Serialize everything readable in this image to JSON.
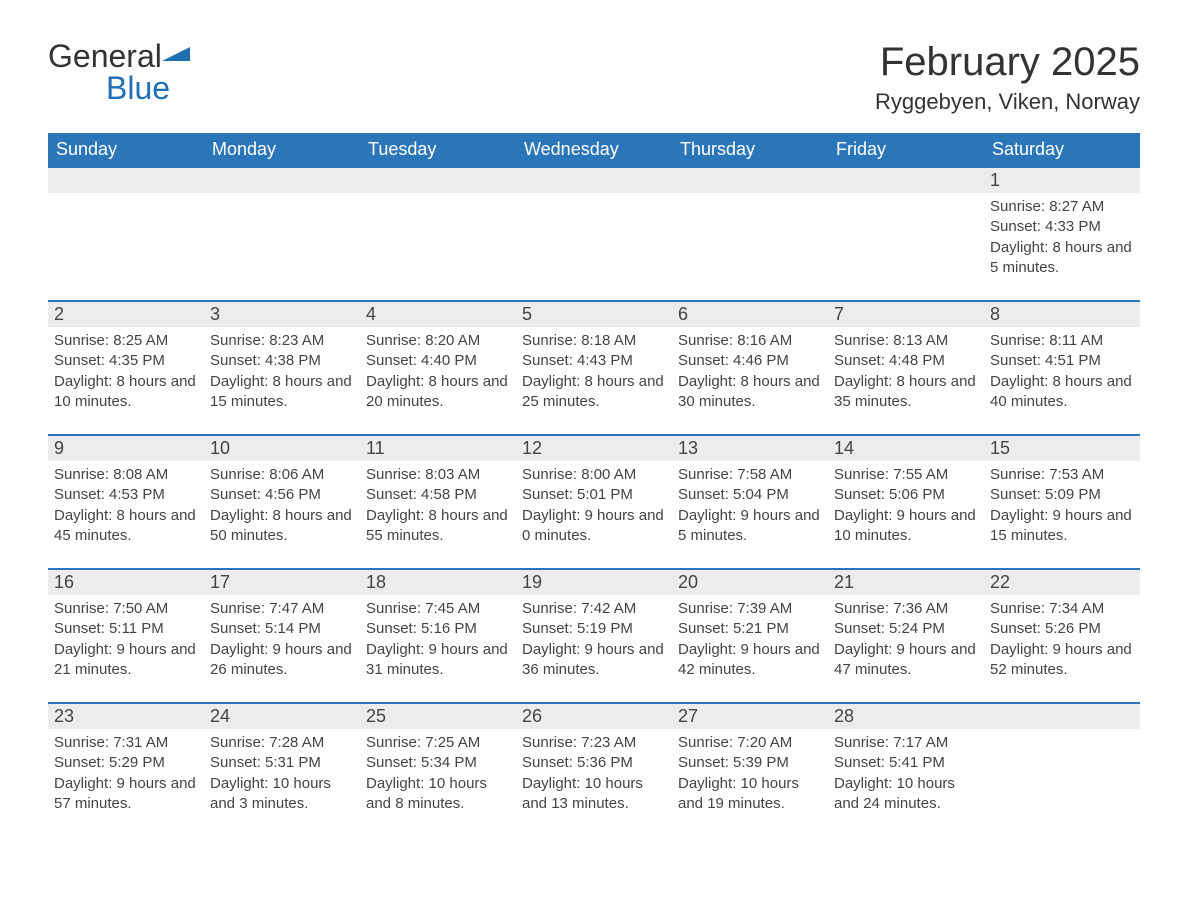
{
  "brand": {
    "name_part1": "General",
    "name_part2": "Blue"
  },
  "title": "February 2025",
  "location": "Ryggebyen, Viken, Norway",
  "colors": {
    "header_bg": "#2a76b9",
    "header_text": "#ffffff",
    "row_border": "#2a76b9",
    "daynum_bg": "#ececec",
    "text": "#444444",
    "brand_blue": "#1f6fb2",
    "page_bg": "#ffffff"
  },
  "typography": {
    "title_fontsize": 40,
    "location_fontsize": 22,
    "header_fontsize": 18,
    "daynum_fontsize": 18,
    "body_fontsize": 15,
    "font_family": "Segoe UI, Arial, sans-serif"
  },
  "weekdays": [
    "Sunday",
    "Monday",
    "Tuesday",
    "Wednesday",
    "Thursday",
    "Friday",
    "Saturday"
  ],
  "labels": {
    "sunrise": "Sunrise:",
    "sunset": "Sunset:",
    "daylight": "Daylight:"
  },
  "calendar": {
    "first_weekday_index": 6,
    "days": [
      {
        "n": 1,
        "sunrise": "8:27 AM",
        "sunset": "4:33 PM",
        "daylight": "8 hours and 5 minutes."
      },
      {
        "n": 2,
        "sunrise": "8:25 AM",
        "sunset": "4:35 PM",
        "daylight": "8 hours and 10 minutes."
      },
      {
        "n": 3,
        "sunrise": "8:23 AM",
        "sunset": "4:38 PM",
        "daylight": "8 hours and 15 minutes."
      },
      {
        "n": 4,
        "sunrise": "8:20 AM",
        "sunset": "4:40 PM",
        "daylight": "8 hours and 20 minutes."
      },
      {
        "n": 5,
        "sunrise": "8:18 AM",
        "sunset": "4:43 PM",
        "daylight": "8 hours and 25 minutes."
      },
      {
        "n": 6,
        "sunrise": "8:16 AM",
        "sunset": "4:46 PM",
        "daylight": "8 hours and 30 minutes."
      },
      {
        "n": 7,
        "sunrise": "8:13 AM",
        "sunset": "4:48 PM",
        "daylight": "8 hours and 35 minutes."
      },
      {
        "n": 8,
        "sunrise": "8:11 AM",
        "sunset": "4:51 PM",
        "daylight": "8 hours and 40 minutes."
      },
      {
        "n": 9,
        "sunrise": "8:08 AM",
        "sunset": "4:53 PM",
        "daylight": "8 hours and 45 minutes."
      },
      {
        "n": 10,
        "sunrise": "8:06 AM",
        "sunset": "4:56 PM",
        "daylight": "8 hours and 50 minutes."
      },
      {
        "n": 11,
        "sunrise": "8:03 AM",
        "sunset": "4:58 PM",
        "daylight": "8 hours and 55 minutes."
      },
      {
        "n": 12,
        "sunrise": "8:00 AM",
        "sunset": "5:01 PM",
        "daylight": "9 hours and 0 minutes."
      },
      {
        "n": 13,
        "sunrise": "7:58 AM",
        "sunset": "5:04 PM",
        "daylight": "9 hours and 5 minutes."
      },
      {
        "n": 14,
        "sunrise": "7:55 AM",
        "sunset": "5:06 PM",
        "daylight": "9 hours and 10 minutes."
      },
      {
        "n": 15,
        "sunrise": "7:53 AM",
        "sunset": "5:09 PM",
        "daylight": "9 hours and 15 minutes."
      },
      {
        "n": 16,
        "sunrise": "7:50 AM",
        "sunset": "5:11 PM",
        "daylight": "9 hours and 21 minutes."
      },
      {
        "n": 17,
        "sunrise": "7:47 AM",
        "sunset": "5:14 PM",
        "daylight": "9 hours and 26 minutes."
      },
      {
        "n": 18,
        "sunrise": "7:45 AM",
        "sunset": "5:16 PM",
        "daylight": "9 hours and 31 minutes."
      },
      {
        "n": 19,
        "sunrise": "7:42 AM",
        "sunset": "5:19 PM",
        "daylight": "9 hours and 36 minutes."
      },
      {
        "n": 20,
        "sunrise": "7:39 AM",
        "sunset": "5:21 PM",
        "daylight": "9 hours and 42 minutes."
      },
      {
        "n": 21,
        "sunrise": "7:36 AM",
        "sunset": "5:24 PM",
        "daylight": "9 hours and 47 minutes."
      },
      {
        "n": 22,
        "sunrise": "7:34 AM",
        "sunset": "5:26 PM",
        "daylight": "9 hours and 52 minutes."
      },
      {
        "n": 23,
        "sunrise": "7:31 AM",
        "sunset": "5:29 PM",
        "daylight": "9 hours and 57 minutes."
      },
      {
        "n": 24,
        "sunrise": "7:28 AM",
        "sunset": "5:31 PM",
        "daylight": "10 hours and 3 minutes."
      },
      {
        "n": 25,
        "sunrise": "7:25 AM",
        "sunset": "5:34 PM",
        "daylight": "10 hours and 8 minutes."
      },
      {
        "n": 26,
        "sunrise": "7:23 AM",
        "sunset": "5:36 PM",
        "daylight": "10 hours and 13 minutes."
      },
      {
        "n": 27,
        "sunrise": "7:20 AM",
        "sunset": "5:39 PM",
        "daylight": "10 hours and 19 minutes."
      },
      {
        "n": 28,
        "sunrise": "7:17 AM",
        "sunset": "5:41 PM",
        "daylight": "10 hours and 24 minutes."
      }
    ]
  }
}
